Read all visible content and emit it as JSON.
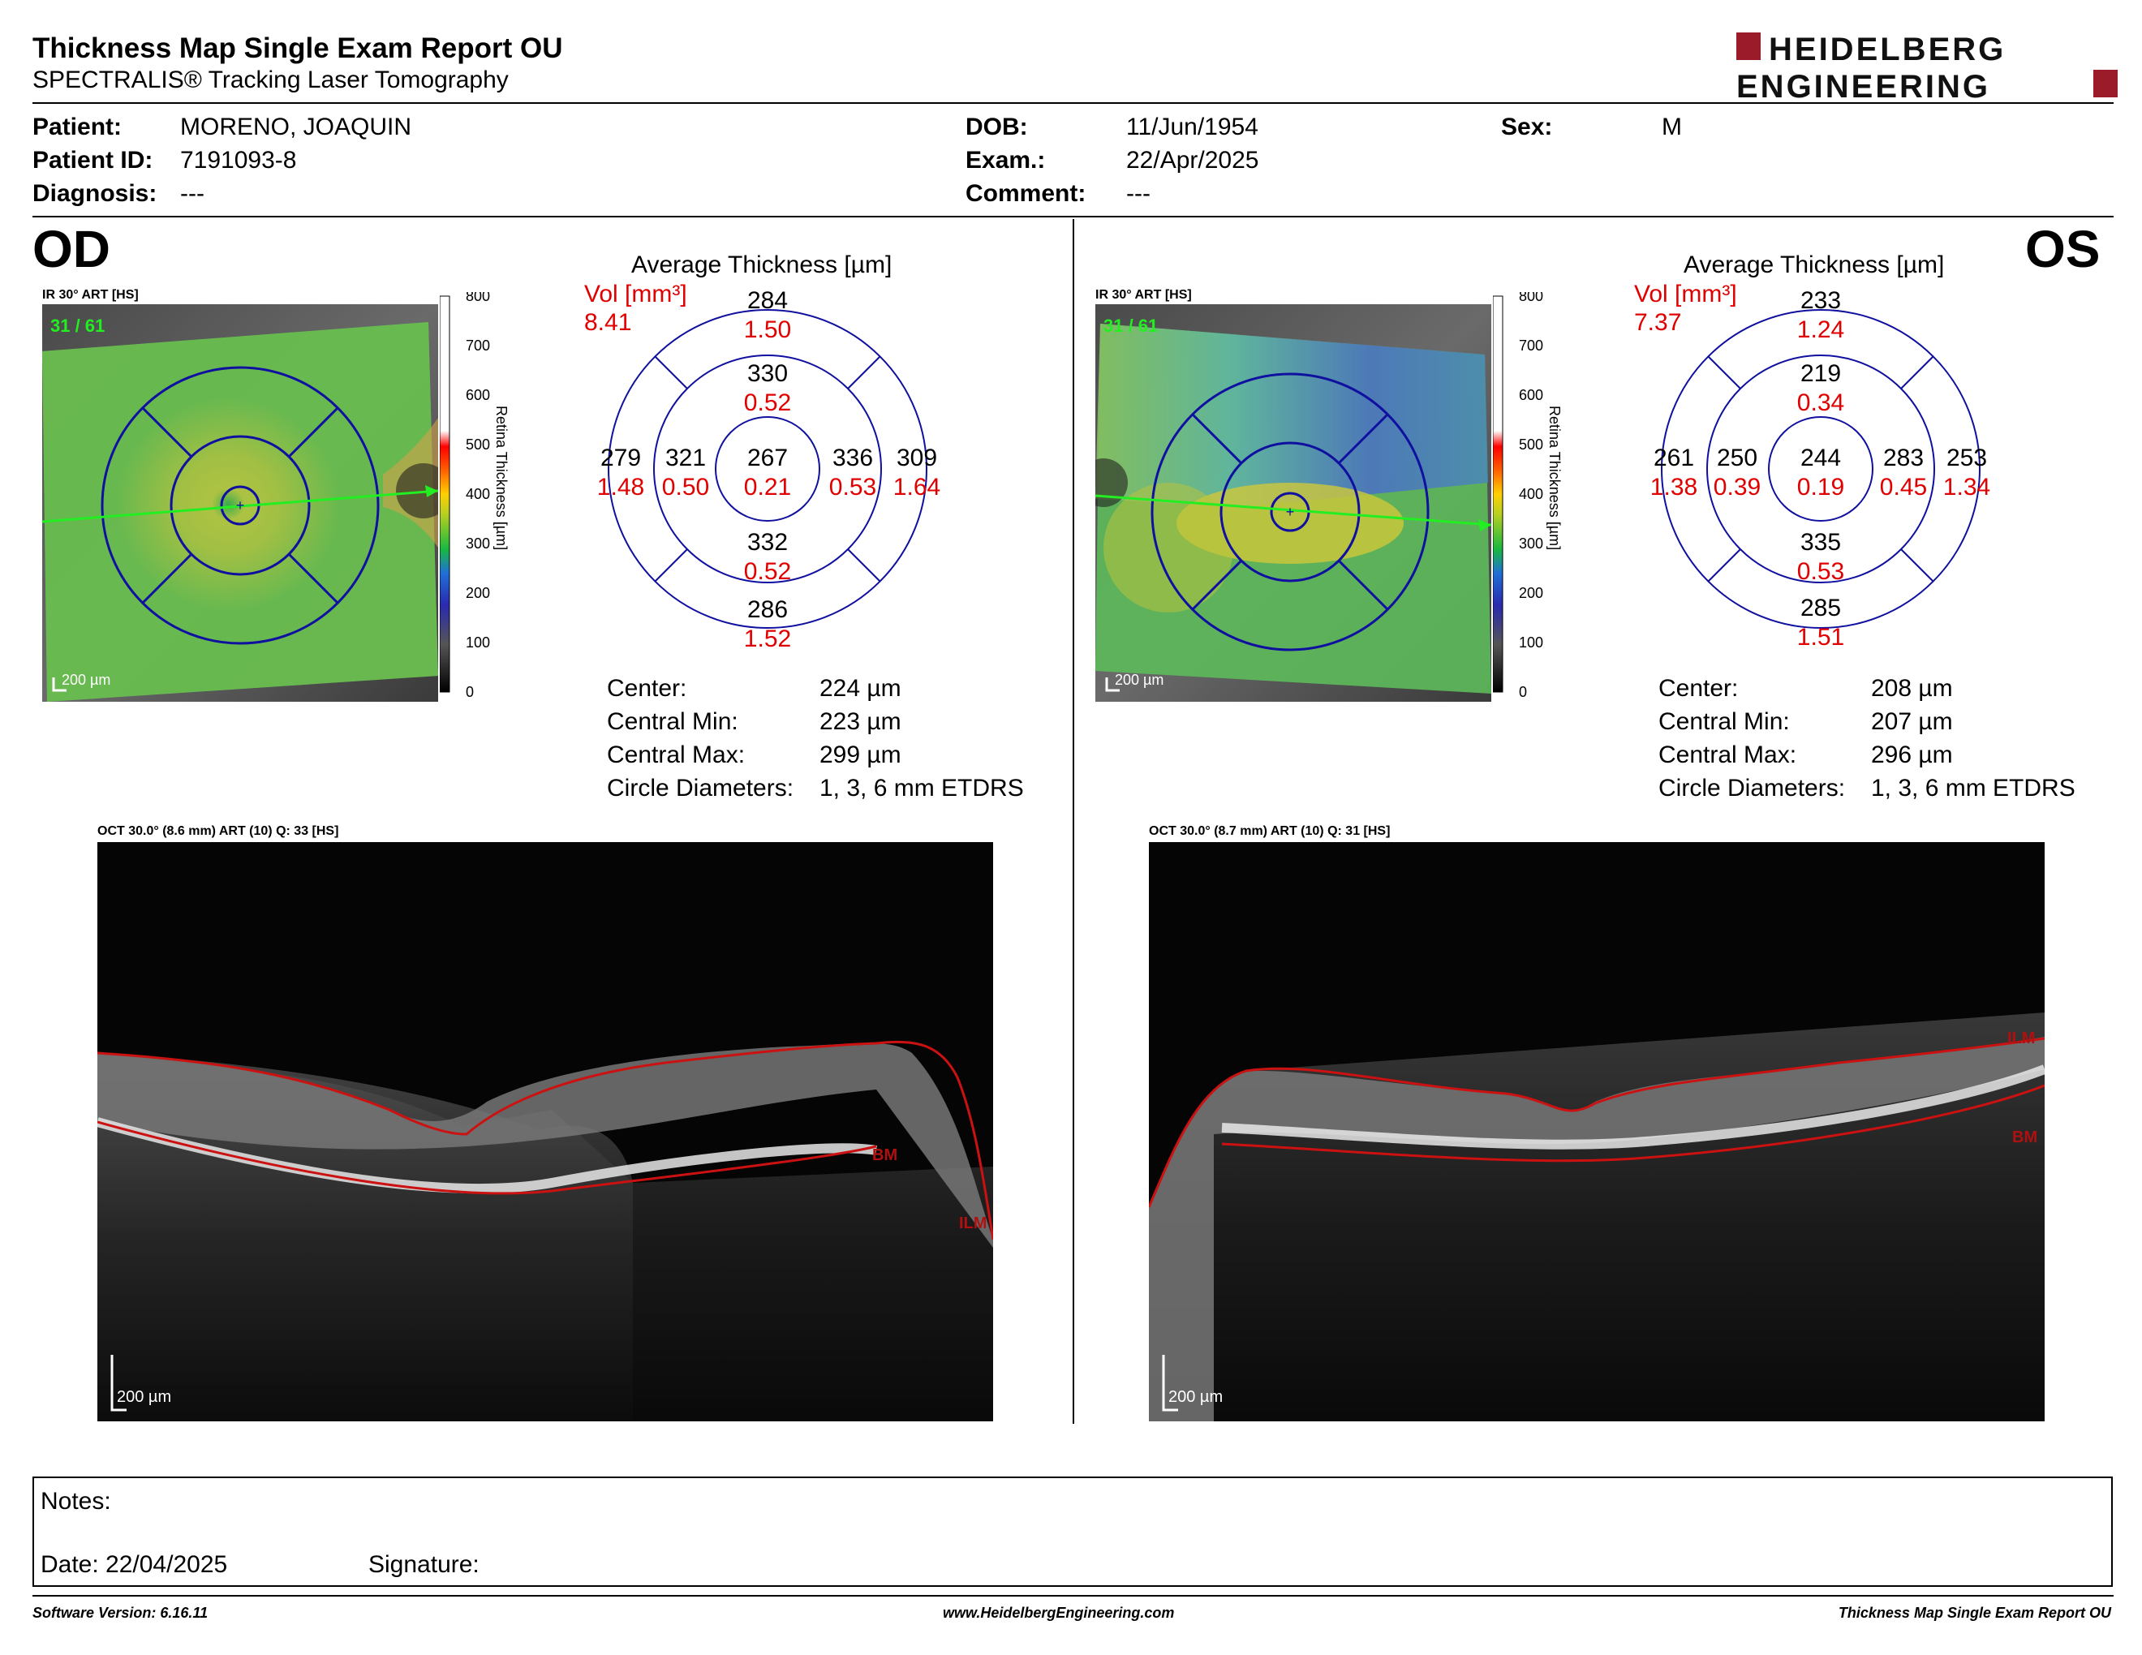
{
  "header": {
    "title": "Thickness Map Single Exam Report OU",
    "subtitle": "SPECTRALIS® Tracking Laser Tomography",
    "logo_line1": "HEIDELBERG",
    "logo_line2": "ENGINEERING"
  },
  "patient": {
    "patient_label": "Patient:",
    "patient_value": "MORENO, JOAQUIN",
    "id_label": "Patient ID:",
    "id_value": "7191093-8",
    "diagnosis_label": "Diagnosis:",
    "diagnosis_value": "---",
    "dob_label": "DOB:",
    "dob_value": "11/Jun/1954",
    "exam_label": "Exam.:",
    "exam_value": "22/Apr/2025",
    "comment_label": "Comment:",
    "comment_value": "---",
    "sex_label": "Sex:",
    "sex_value": "M"
  },
  "od": {
    "eye": "OD",
    "ir_label": "IR 30° ART [HS]",
    "frame_count": "31 / 61",
    "scale_label": "200 µm",
    "avg_title": "Average Thickness [µm]",
    "vol_label": "Vol [mm³]",
    "vol_total": "8.41",
    "sectors": {
      "outer_sup": {
        "t": "284",
        "v": "1.50"
      },
      "inner_sup": {
        "t": "330",
        "v": "0.52"
      },
      "outer_temp": {
        "t": "279",
        "v": "1.48"
      },
      "inner_temp": {
        "t": "321",
        "v": "0.50"
      },
      "center": {
        "t": "267",
        "v": "0.21"
      },
      "inner_nasal": {
        "t": "336",
        "v": "0.53"
      },
      "outer_nasal": {
        "t": "309",
        "v": "1.64"
      },
      "inner_inf": {
        "t": "332",
        "v": "0.52"
      },
      "outer_inf": {
        "t": "286",
        "v": "1.52"
      }
    },
    "stats": {
      "center_label": "Center:",
      "center_value": "224 µm",
      "min_label": "Central Min:",
      "min_value": "223 µm",
      "max_label": "Central Max:",
      "max_value": "299 µm",
      "circ_label": "Circle Diameters:",
      "circ_value": "1, 3, 6 mm ETDRS"
    },
    "oct_label": "OCT 30.0° (8.6 mm) ART (10) Q: 33 [HS]",
    "oct_scale": "200 µm",
    "ilm": "ILM",
    "bm": "BM"
  },
  "os": {
    "eye": "OS",
    "ir_label": "IR 30° ART [HS]",
    "frame_count": "31 / 61",
    "scale_label": "200 µm",
    "avg_title": "Average Thickness [µm]",
    "vol_label": "Vol [mm³]",
    "vol_total": "7.37",
    "sectors": {
      "outer_sup": {
        "t": "233",
        "v": "1.24"
      },
      "inner_sup": {
        "t": "219",
        "v": "0.34"
      },
      "outer_temp": {
        "t": "261",
        "v": "1.38"
      },
      "inner_temp": {
        "t": "250",
        "v": "0.39"
      },
      "center": {
        "t": "244",
        "v": "0.19"
      },
      "inner_nasal": {
        "t": "283",
        "v": "0.45"
      },
      "outer_nasal": {
        "t": "253",
        "v": "1.34"
      },
      "inner_inf": {
        "t": "335",
        "v": "0.53"
      },
      "outer_inf": {
        "t": "285",
        "v": "1.51"
      }
    },
    "stats": {
      "center_label": "Center:",
      "center_value": "208 µm",
      "min_label": "Central Min:",
      "min_value": "207 µm",
      "max_label": "Central Max:",
      "max_value": "296 µm",
      "circ_label": "Circle Diameters:",
      "circ_value": "1, 3, 6 mm ETDRS"
    },
    "oct_label": "OCT 30.0° (8.7 mm) ART (10) Q: 31 [HS]",
    "oct_scale": "200 µm",
    "ilm": "ILM",
    "bm": "BM"
  },
  "colorbar": {
    "ticks": [
      "800",
      "700",
      "600",
      "500",
      "400",
      "300",
      "200",
      "100",
      "0"
    ],
    "title": "Retina  Thickness [µm]"
  },
  "notes": {
    "notes_label": "Notes:",
    "date_label": "Date: 22/04/2025",
    "signature_label": "Signature:"
  },
  "footer": {
    "software": "Software Version: 6.16.11",
    "website": "www.HeidelbergEngineering.com",
    "report": "Thickness Map Single Exam Report OU"
  },
  "colors": {
    "etdrs_blue": "#1010a0",
    "volume_red": "#e00000",
    "logo_red": "#9b1b2b",
    "frame_green": "#22ee22",
    "segmentation_red": "#cc1111"
  }
}
